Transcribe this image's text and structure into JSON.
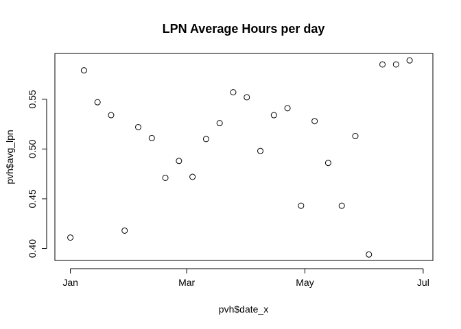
{
  "chart_data": {
    "type": "scatter",
    "title": "LPN Average Hours per day",
    "xlabel": "pvh$date_x",
    "ylabel": "pvh$avg_lpn",
    "x_ticks": [
      "Jan",
      "Mar",
      "May",
      "Jul"
    ],
    "x_tick_dates": [
      "2020-01-01",
      "2020-03-01",
      "2020-05-01",
      "2020-07-01"
    ],
    "y_ticks": [
      0.4,
      0.45,
      0.5,
      0.55
    ],
    "y_tick_labels": [
      "0.40",
      "0.45",
      "0.50",
      "0.55"
    ],
    "xlim": [
      "2019-12-24",
      "2020-07-06"
    ],
    "ylim": [
      0.388,
      0.596
    ],
    "grid": false,
    "marker": "open-circle",
    "points": [
      {
        "x": "2020-01-01",
        "y": 0.411
      },
      {
        "x": "2020-01-08",
        "y": 0.579
      },
      {
        "x": "2020-01-15",
        "y": 0.547
      },
      {
        "x": "2020-01-22",
        "y": 0.534
      },
      {
        "x": "2020-01-29",
        "y": 0.418
      },
      {
        "x": "2020-02-05",
        "y": 0.522
      },
      {
        "x": "2020-02-12",
        "y": 0.511
      },
      {
        "x": "2020-02-19",
        "y": 0.471
      },
      {
        "x": "2020-02-26",
        "y": 0.488
      },
      {
        "x": "2020-03-04",
        "y": 0.472
      },
      {
        "x": "2020-03-11",
        "y": 0.51
      },
      {
        "x": "2020-03-18",
        "y": 0.526
      },
      {
        "x": "2020-03-25",
        "y": 0.557
      },
      {
        "x": "2020-04-01",
        "y": 0.552
      },
      {
        "x": "2020-04-08",
        "y": 0.498
      },
      {
        "x": "2020-04-15",
        "y": 0.534
      },
      {
        "x": "2020-04-22",
        "y": 0.541
      },
      {
        "x": "2020-04-29",
        "y": 0.443
      },
      {
        "x": "2020-05-06",
        "y": 0.528
      },
      {
        "x": "2020-05-13",
        "y": 0.486
      },
      {
        "x": "2020-05-20",
        "y": 0.443
      },
      {
        "x": "2020-05-27",
        "y": 0.513
      },
      {
        "x": "2020-06-03",
        "y": 0.394
      },
      {
        "x": "2020-06-10",
        "y": 0.585
      },
      {
        "x": "2020-06-17",
        "y": 0.585
      },
      {
        "x": "2020-06-24",
        "y": 0.589
      }
    ]
  }
}
